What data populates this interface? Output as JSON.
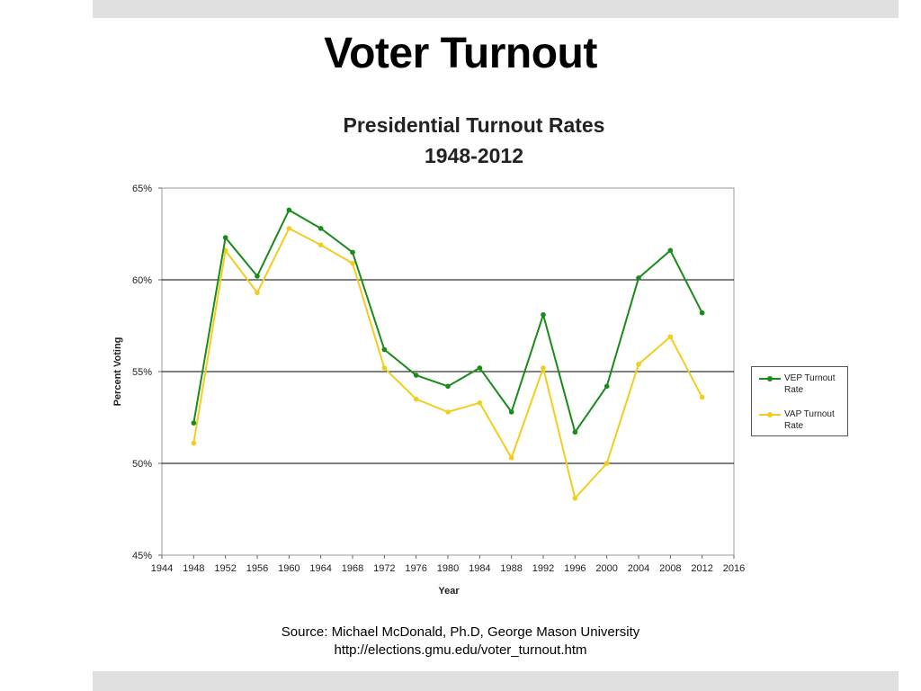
{
  "slide": {
    "title": "Voter Turnout",
    "source_line1": "Source: Michael McDonald, Ph.D,  George Mason University",
    "source_line2": "http://elections.gmu.edu/voter_turnout.htm"
  },
  "colors": {
    "vep": "#1a8a1a",
    "vap": "#f2cd1f",
    "band": "#e0e0e0",
    "gridline": "#000000"
  },
  "chart_data": {
    "type": "line",
    "title": "Presidential Turnout Rates",
    "subtitle": "1948-2012",
    "xlabel": "Year",
    "ylabel": "Percent Voting",
    "xlim": [
      1944,
      2016
    ],
    "ylim": [
      45,
      65
    ],
    "xticks": [
      1944,
      1948,
      1952,
      1956,
      1960,
      1964,
      1968,
      1972,
      1976,
      1980,
      1984,
      1988,
      1992,
      1996,
      2000,
      2004,
      2008,
      2012,
      2016
    ],
    "yticks": [
      45,
      50,
      55,
      60,
      65
    ],
    "ytick_labels": [
      "45%",
      "50%",
      "55%",
      "60%",
      "65%"
    ],
    "grid": "horizontal",
    "legend_position": "right",
    "x": [
      1948,
      1952,
      1956,
      1960,
      1964,
      1968,
      1972,
      1976,
      1980,
      1984,
      1988,
      1992,
      1996,
      2000,
      2004,
      2008,
      2012
    ],
    "series": [
      {
        "name": "VEP Turnout Rate",
        "color": "#1a8a1a",
        "values": [
          52.2,
          62.3,
          60.2,
          63.8,
          62.8,
          61.5,
          56.2,
          54.8,
          54.2,
          55.2,
          52.8,
          58.1,
          51.7,
          54.2,
          60.1,
          61.6,
          58.2
        ]
      },
      {
        "name": "VAP Turnout Rate",
        "color": "#f2cd1f",
        "values": [
          51.1,
          61.6,
          59.3,
          62.8,
          61.9,
          60.9,
          55.2,
          53.5,
          52.8,
          53.3,
          50.3,
          55.2,
          48.1,
          50.0,
          55.4,
          56.9,
          53.6
        ]
      }
    ]
  }
}
